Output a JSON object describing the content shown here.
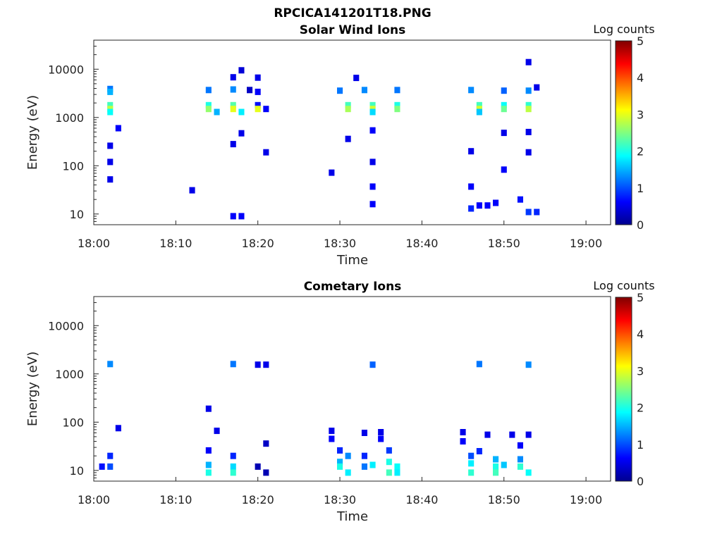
{
  "figure_title": "RPCICA141201T18.PNG",
  "colors": {
    "jet": [
      "#00008f",
      "#0000ff",
      "#0080ff",
      "#00ffff",
      "#80ff80",
      "#ffff00",
      "#ff8000",
      "#ff0000",
      "#800000"
    ]
  },
  "chart_data": [
    {
      "type": "heatmap",
      "title": "Solar Wind Ions",
      "xlabel": "Time",
      "ylabel": "Energy (eV)",
      "xlim": [
        "18:00",
        "19:03"
      ],
      "ylim": [
        6,
        40000
      ],
      "y_scale": "log",
      "x_ticks": [
        "18:00",
        "18:10",
        "18:20",
        "18:30",
        "18:40",
        "18:50",
        "19:00"
      ],
      "y_ticks": [
        "10",
        "100",
        "1000",
        "10000"
      ],
      "colorbar": {
        "label": "Log counts",
        "range": [
          0,
          5
        ],
        "ticks": [
          "0",
          "1",
          "2",
          "3",
          "4",
          "5"
        ]
      },
      "cells": [
        [
          "18:02",
          3900,
          1.2
        ],
        [
          "18:02",
          3400,
          1.5
        ],
        [
          "18:02",
          1800,
          2.2
        ],
        [
          "18:02",
          1500,
          2.8
        ],
        [
          "18:02",
          1300,
          1.9
        ],
        [
          "18:03",
          600,
          0.6
        ],
        [
          "18:02",
          260,
          0.5
        ],
        [
          "18:02",
          120,
          0.5
        ],
        [
          "18:02",
          52,
          0.5
        ],
        [
          "18:14",
          3700,
          1.2
        ],
        [
          "18:14",
          1800,
          2.0
        ],
        [
          "18:14",
          1500,
          2.6
        ],
        [
          "18:15",
          1300,
          1.5
        ],
        [
          "18:17",
          3800,
          1.3
        ],
        [
          "18:17",
          1800,
          2.3
        ],
        [
          "18:17",
          1500,
          3.0
        ],
        [
          "18:18",
          1300,
          1.8
        ],
        [
          "18:17",
          6800,
          0.5
        ],
        [
          "18:18",
          470,
          0.5
        ],
        [
          "18:17",
          280,
          0.5
        ],
        [
          "18:12",
          31,
          0.5
        ],
        [
          "18:17",
          9,
          0.6
        ],
        [
          "18:18",
          9,
          0.6
        ],
        [
          "18:18",
          9500,
          0.4
        ],
        [
          "18:20",
          6700,
          0.5
        ],
        [
          "18:19",
          3700,
          0.3
        ],
        [
          "18:20",
          3400,
          0.6
        ],
        [
          "18:20",
          1800,
          0.7
        ],
        [
          "18:20",
          1500,
          3.0
        ],
        [
          "18:21",
          1500,
          0.6
        ],
        [
          "18:21",
          190,
          0.5
        ],
        [
          "18:30",
          3600,
          1.2
        ],
        [
          "18:31",
          1800,
          2.2
        ],
        [
          "18:31",
          1500,
          2.7
        ],
        [
          "18:31",
          360,
          0.5
        ],
        [
          "18:29",
          72,
          0.5
        ],
        [
          "18:32",
          6600,
          0.5
        ],
        [
          "18:33",
          3700,
          1.3
        ],
        [
          "18:34",
          1800,
          2.2
        ],
        [
          "18:34",
          1500,
          2.9
        ],
        [
          "18:34",
          1300,
          1.7
        ],
        [
          "18:34",
          540,
          0.6
        ],
        [
          "18:34",
          120,
          0.5
        ],
        [
          "18:34",
          37,
          0.6
        ],
        [
          "18:34",
          16,
          0.6
        ],
        [
          "18:37",
          3700,
          1.2
        ],
        [
          "18:37",
          1800,
          2.0
        ],
        [
          "18:37",
          1500,
          2.5
        ],
        [
          "18:46",
          3700,
          1.3
        ],
        [
          "18:47",
          1800,
          2.2
        ],
        [
          "18:47",
          1500,
          2.9
        ],
        [
          "18:47",
          1300,
          1.6
        ],
        [
          "18:46",
          200,
          0.5
        ],
        [
          "18:46",
          37,
          0.6
        ],
        [
          "18:46",
          13,
          0.8
        ],
        [
          "18:47",
          15,
          0.6
        ],
        [
          "18:48",
          15,
          0.6
        ],
        [
          "18:50",
          3600,
          1.1
        ],
        [
          "18:50",
          1800,
          1.9
        ],
        [
          "18:50",
          1500,
          2.4
        ],
        [
          "18:50",
          480,
          0.5
        ],
        [
          "18:50",
          83,
          0.6
        ],
        [
          "18:49",
          17,
          0.6
        ],
        [
          "18:53",
          3600,
          1.3
        ],
        [
          "18:53",
          1800,
          2.1
        ],
        [
          "18:53",
          1500,
          2.8
        ],
        [
          "18:53",
          14000,
          0.5
        ],
        [
          "18:54",
          4200,
          0.5
        ],
        [
          "18:53",
          500,
          0.5
        ],
        [
          "18:53",
          190,
          0.5
        ],
        [
          "18:52",
          20,
          0.7
        ],
        [
          "18:53",
          11,
          0.9
        ],
        [
          "18:54",
          11,
          0.8
        ]
      ]
    },
    {
      "type": "heatmap",
      "title": "Cometary Ions",
      "xlabel": "Time",
      "ylabel": "Energy (eV)",
      "xlim": [
        "18:00",
        "19:03"
      ],
      "ylim": [
        6,
        40000
      ],
      "y_scale": "log",
      "x_ticks": [
        "18:00",
        "18:10",
        "18:20",
        "18:30",
        "18:40",
        "18:50",
        "19:00"
      ],
      "y_ticks": [
        "10",
        "100",
        "1000",
        "10000"
      ],
      "colorbar": {
        "label": "Log counts",
        "range": [
          0,
          5
        ],
        "ticks": [
          "0",
          "1",
          "2",
          "3",
          "4",
          "5"
        ]
      },
      "cells": [
        [
          "18:01",
          12,
          0.7
        ],
        [
          "18:02",
          12,
          1.0
        ],
        [
          "18:02",
          20,
          0.8
        ],
        [
          "18:02",
          1600,
          1.3
        ],
        [
          "18:03",
          75,
          0.5
        ],
        [
          "18:14",
          190,
          0.5
        ],
        [
          "18:14",
          26,
          0.6
        ],
        [
          "18:14",
          13,
          1.5
        ],
        [
          "18:14",
          9,
          2.0
        ],
        [
          "18:15",
          66,
          0.5
        ],
        [
          "18:17",
          1600,
          1.2
        ],
        [
          "18:17",
          20,
          0.8
        ],
        [
          "18:17",
          12,
          1.7
        ],
        [
          "18:17",
          9,
          2.1
        ],
        [
          "18:20",
          1550,
          0.5
        ],
        [
          "18:21",
          1550,
          0.5
        ],
        [
          "18:21",
          36,
          0.3
        ],
        [
          "18:20",
          12,
          0.2
        ],
        [
          "18:21",
          9,
          0.2
        ],
        [
          "18:29",
          66,
          0.5
        ],
        [
          "18:29",
          45,
          0.6
        ],
        [
          "18:30",
          26,
          0.8
        ],
        [
          "18:30",
          15,
          1.5
        ],
        [
          "18:30",
          12,
          2.0
        ],
        [
          "18:31",
          9,
          1.8
        ],
        [
          "18:31",
          20,
          1.3
        ],
        [
          "18:33",
          60,
          0.5
        ],
        [
          "18:33",
          20,
          0.8
        ],
        [
          "18:33",
          12,
          1.2
        ],
        [
          "18:34",
          13,
          1.8
        ],
        [
          "18:34",
          1550,
          1.1
        ],
        [
          "18:35",
          62,
          0.5
        ],
        [
          "18:35",
          45,
          0.6
        ],
        [
          "18:36",
          26,
          0.9
        ],
        [
          "18:36",
          15,
          2.0
        ],
        [
          "18:37",
          12,
          1.9
        ],
        [
          "18:36",
          9,
          2.2
        ],
        [
          "18:37",
          9,
          1.8
        ],
        [
          "18:45",
          62,
          0.5
        ],
        [
          "18:45",
          40,
          0.6
        ],
        [
          "18:46",
          20,
          1.0
        ],
        [
          "18:46",
          14,
          1.8
        ],
        [
          "18:46",
          9,
          2.1
        ],
        [
          "18:47",
          1600,
          1.2
        ],
        [
          "18:47",
          25,
          0.8
        ],
        [
          "18:48",
          55,
          0.5
        ],
        [
          "18:49",
          17,
          1.5
        ],
        [
          "18:49",
          12,
          2.0
        ],
        [
          "18:49",
          9,
          2.2
        ],
        [
          "18:50",
          13,
          1.6
        ],
        [
          "18:51",
          55,
          0.5
        ],
        [
          "18:52",
          33,
          0.6
        ],
        [
          "18:52",
          17,
          1.3
        ],
        [
          "18:52",
          12,
          2.1
        ],
        [
          "18:53",
          9,
          1.9
        ],
        [
          "18:53",
          1550,
          1.3
        ],
        [
          "18:53",
          55,
          0.5
        ]
      ]
    }
  ]
}
